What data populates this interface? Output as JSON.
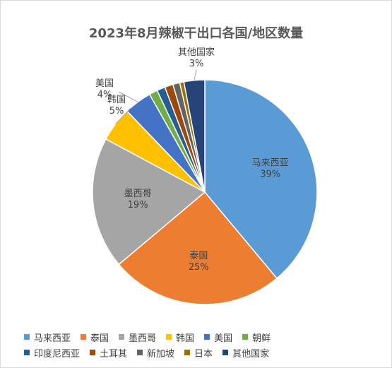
{
  "chart_data": {
    "type": "pie",
    "title": "2023年8月辣椒干出口各国/地区数量",
    "categories": [
      "马来西亚",
      "泰国",
      "墨西哥",
      "韩国",
      "美国",
      "朝鲜",
      "印度尼西亚",
      "土耳其",
      "新加坡",
      "日本",
      "其他国家"
    ],
    "values": [
      39,
      25,
      19,
      5,
      4,
      1.2,
      1.2,
      1.2,
      1.0,
      0.6,
      3
    ],
    "data_labels": {
      "马来西亚": "39%",
      "泰国": "25%",
      "墨西哥": "19%",
      "韩国": "5%",
      "美国": "4%",
      "其他国家": "3%"
    },
    "colors": [
      "#5b9bd5",
      "#ed7d31",
      "#a5a5a5",
      "#ffc000",
      "#4472c4",
      "#70ad47",
      "#255e91",
      "#9e480e",
      "#636363",
      "#997300",
      "#264478"
    ],
    "legend_position": "bottom"
  }
}
